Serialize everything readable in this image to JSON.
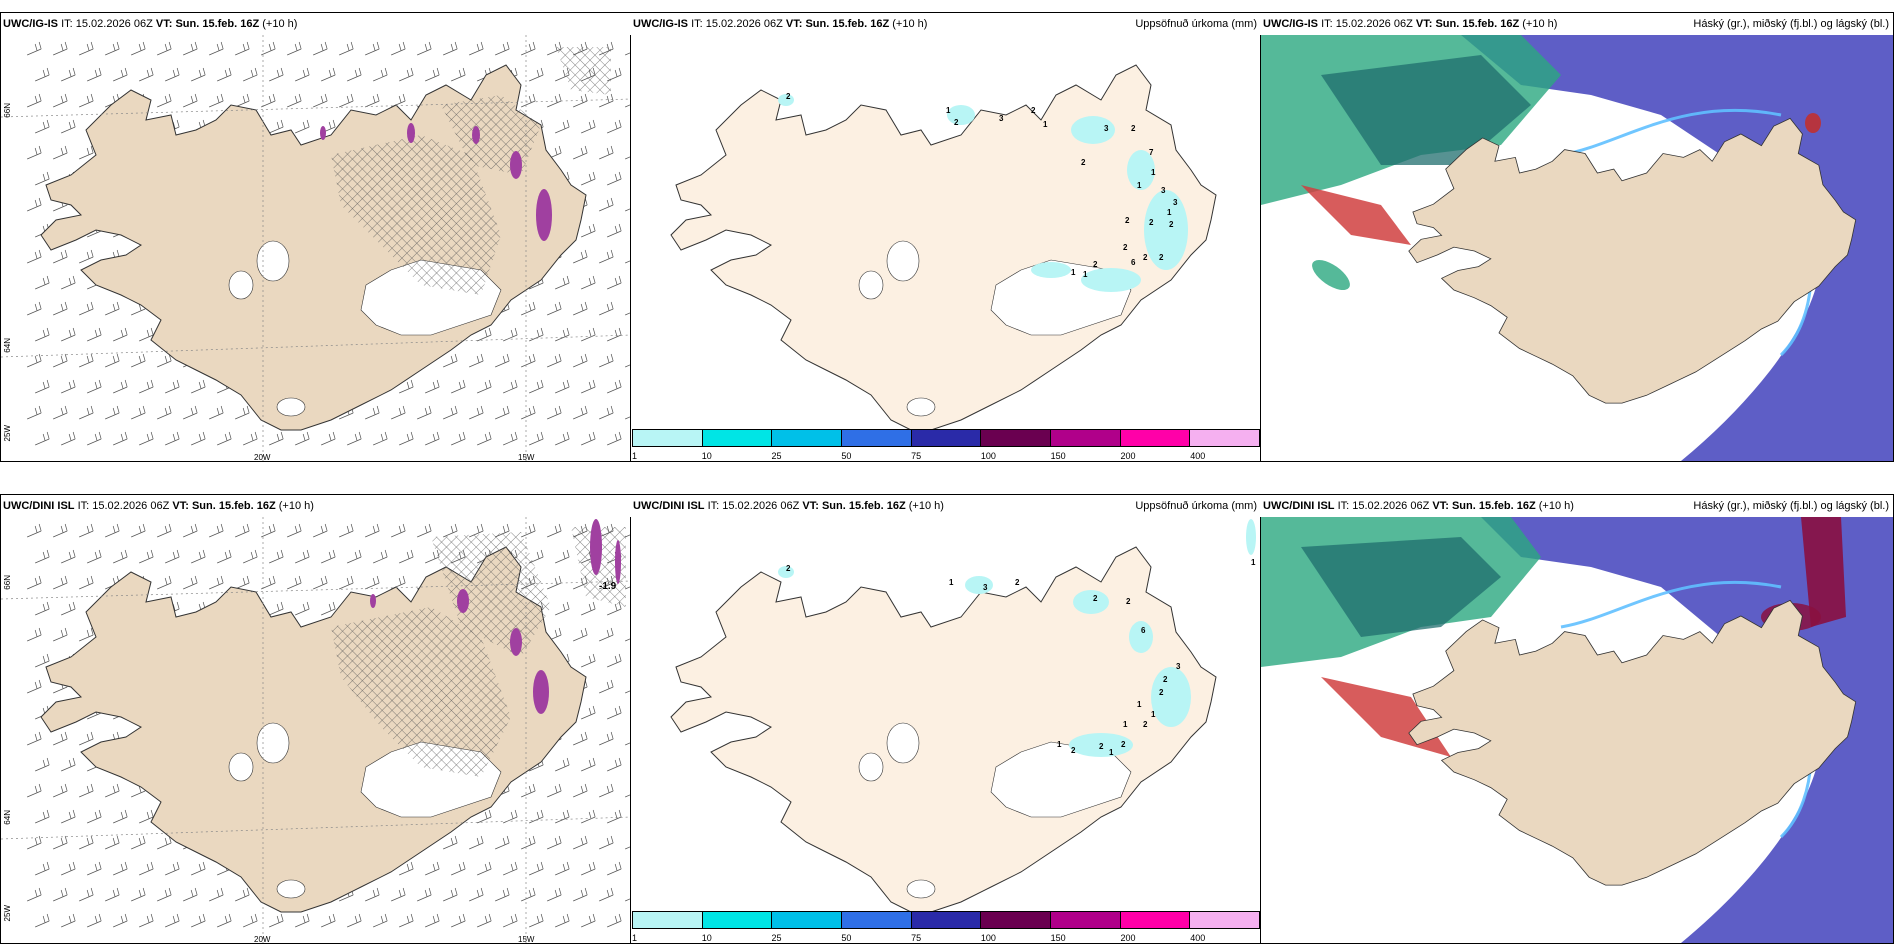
{
  "rows": [
    {
      "model": "UWC/IG-IS",
      "it_label": "IT:",
      "it_value": "15.02.2026 06Z",
      "vt_label": "VT:",
      "vt_value": "Sun. 15.feb. 16Z",
      "lead": "(+10 h)"
    },
    {
      "model": "UWC/DINI ISL",
      "it_label": "IT:",
      "it_value": "15.02.2026 06Z",
      "vt_label": "VT:",
      "vt_value": "Sun. 15.feb. 16Z",
      "lead": "(+10 h)"
    }
  ],
  "precip_title": "Uppsöfnuð úrkoma (mm)",
  "cloud_title": "Háský (gr.), miðský (fj.bl.) og lágský (bl.)",
  "colorbar": {
    "ticks": [
      "1",
      "10",
      "25",
      "50",
      "75",
      "100",
      "150",
      "200",
      "400"
    ],
    "colors": [
      "#b8f5f5",
      "#00e5e5",
      "#00c0e8",
      "#2f6fe6",
      "#2a2aa8",
      "#6a0050",
      "#b0008a",
      "#ff00a8",
      "#f5b0f0"
    ]
  },
  "axes": {
    "lat_66": "66N",
    "lat_64": "64N",
    "lon_25": "25W",
    "lon_20": "20W",
    "lon_15": "15W"
  },
  "precip_numbers_top": [
    "2",
    "1",
    "2",
    "3",
    "2",
    "1",
    "3",
    "2",
    "7",
    "1",
    "1",
    "3",
    "3",
    "1",
    "2",
    "2",
    "2",
    "2",
    "2",
    "6",
    "2",
    "2",
    "1",
    "1",
    "2"
  ],
  "precip_numbers_bottom": [
    "2",
    "1",
    "3",
    "2",
    "2",
    "2",
    "6",
    "3",
    "2",
    "2",
    "1",
    "1",
    "2",
    "1",
    "2",
    "2",
    "1",
    "1",
    "2",
    "1"
  ],
  "wind_label_bottom": "-1.9",
  "colors": {
    "land_wind": "#ead8c0",
    "land_precip": "#fcf0e2",
    "ocean_cloud": "#5e5ec6",
    "ice_hatch": "#555555"
  }
}
